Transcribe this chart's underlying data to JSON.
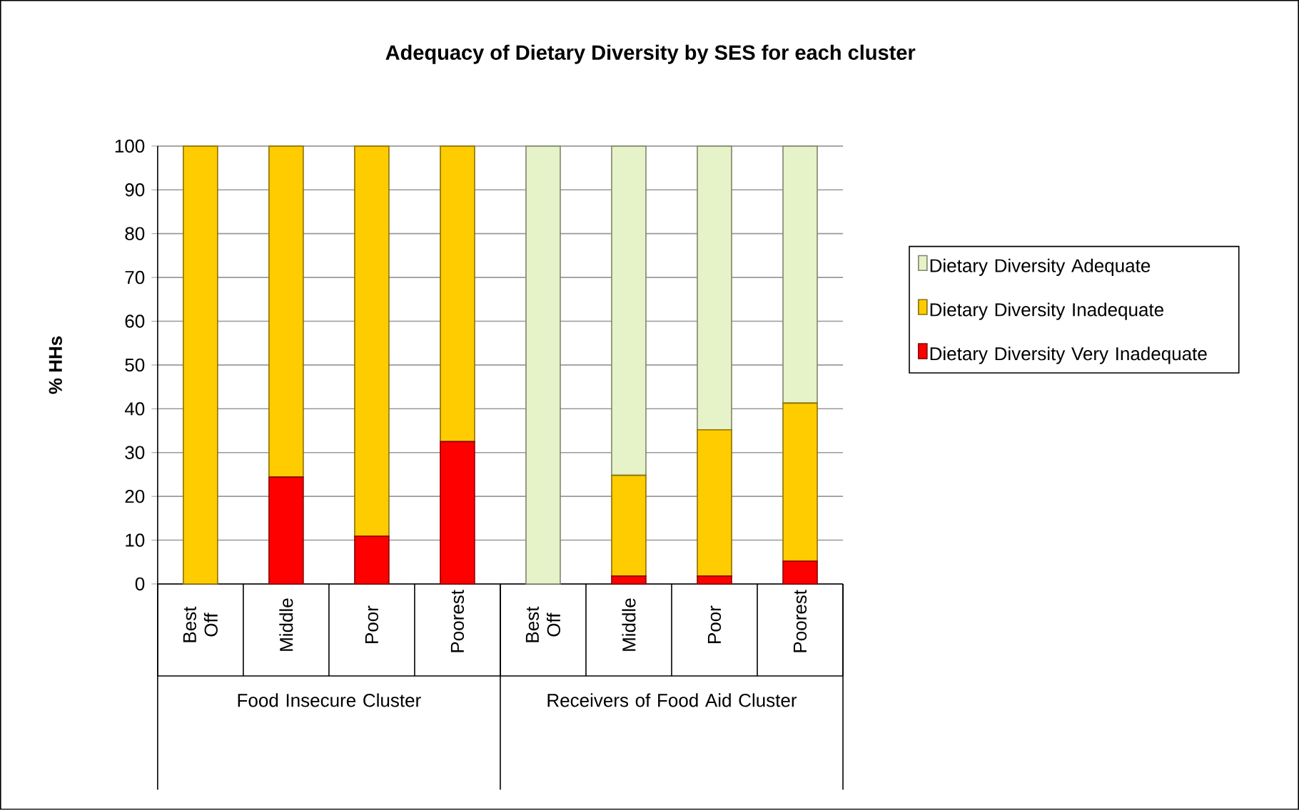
{
  "chart_data": {
    "type": "bar",
    "stacked": true,
    "title": "Adequacy of Dietary Diversity by SES for each cluster",
    "ylabel": "% HHs",
    "categories": [
      "Best Off",
      "Middle",
      "Poor",
      "Poorest",
      "Best Off",
      "Middle",
      "Poor",
      "Poorest"
    ],
    "series": [
      {
        "name": "Dietary Diversity Very Inadequate",
        "color": "#ff0000",
        "values": [
          0,
          24.4,
          10.9,
          32.5,
          0,
          1.8,
          1.8,
          5.2
        ]
      },
      {
        "name": "Dietary Diversity Inadequate",
        "color": "#ffcc00",
        "values": [
          100,
          75.6,
          89.1,
          67.5,
          0,
          23.0,
          33.4,
          36.1
        ]
      },
      {
        "name": "Dietary Diversity Adequate",
        "color": "#e6f2c8",
        "values": [
          0,
          0,
          0,
          0,
          100,
          75.2,
          64.8,
          58.7
        ]
      }
    ],
    "ylim": [
      0,
      100
    ],
    "yticks": [
      0,
      10,
      20,
      30,
      40,
      50,
      60,
      70,
      80,
      90,
      100
    ],
    "grid": "y",
    "legend": "right",
    "annotations": [
      "Food Insecure Cluster",
      "Receivers of Food Aid Cluster"
    ]
  }
}
